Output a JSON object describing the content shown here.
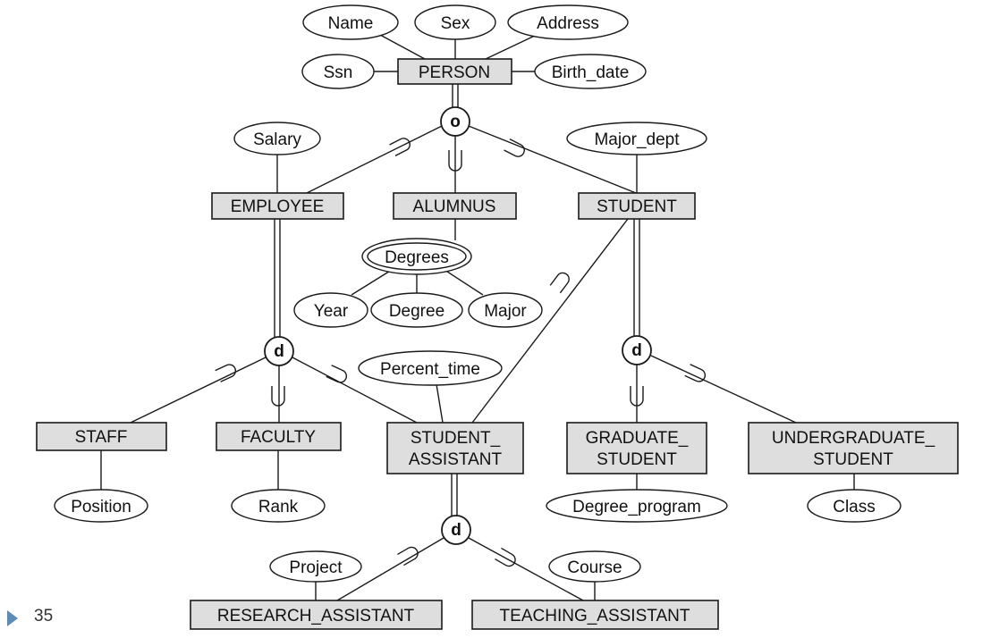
{
  "slide": {
    "page_number": "35",
    "title_fragment": ""
  },
  "entities": {
    "person": "PERSON",
    "employee": "EMPLOYEE",
    "alumnus": "ALUMNUS",
    "student": "STUDENT",
    "staff": "STAFF",
    "faculty": "FACULTY",
    "student_assistant_1": "STUDENT_",
    "student_assistant_2": "ASSISTANT",
    "graduate_student_1": "GRADUATE_",
    "graduate_student_2": "STUDENT",
    "undergraduate_student_1": "UNDERGRADUATE_",
    "undergraduate_student_2": "STUDENT",
    "research_assistant": "RESEARCH_ASSISTANT",
    "teaching_assistant": "TEACHING_ASSISTANT"
  },
  "attributes": {
    "name": "Name",
    "sex": "Sex",
    "address": "Address",
    "ssn": "Ssn",
    "birth_date": "Birth_date",
    "salary": "Salary",
    "major_dept": "Major_dept",
    "degrees": "Degrees",
    "year": "Year",
    "degree": "Degree",
    "major": "Major",
    "percent_time": "Percent_time",
    "position": "Position",
    "rank": "Rank",
    "degree_program": "Degree_program",
    "class": "Class",
    "project": "Project",
    "course": "Course"
  },
  "constraints": {
    "person_overlap": "o",
    "employee_disjoint": "d",
    "student_disjoint": "d",
    "assistant_disjoint": "d"
  }
}
